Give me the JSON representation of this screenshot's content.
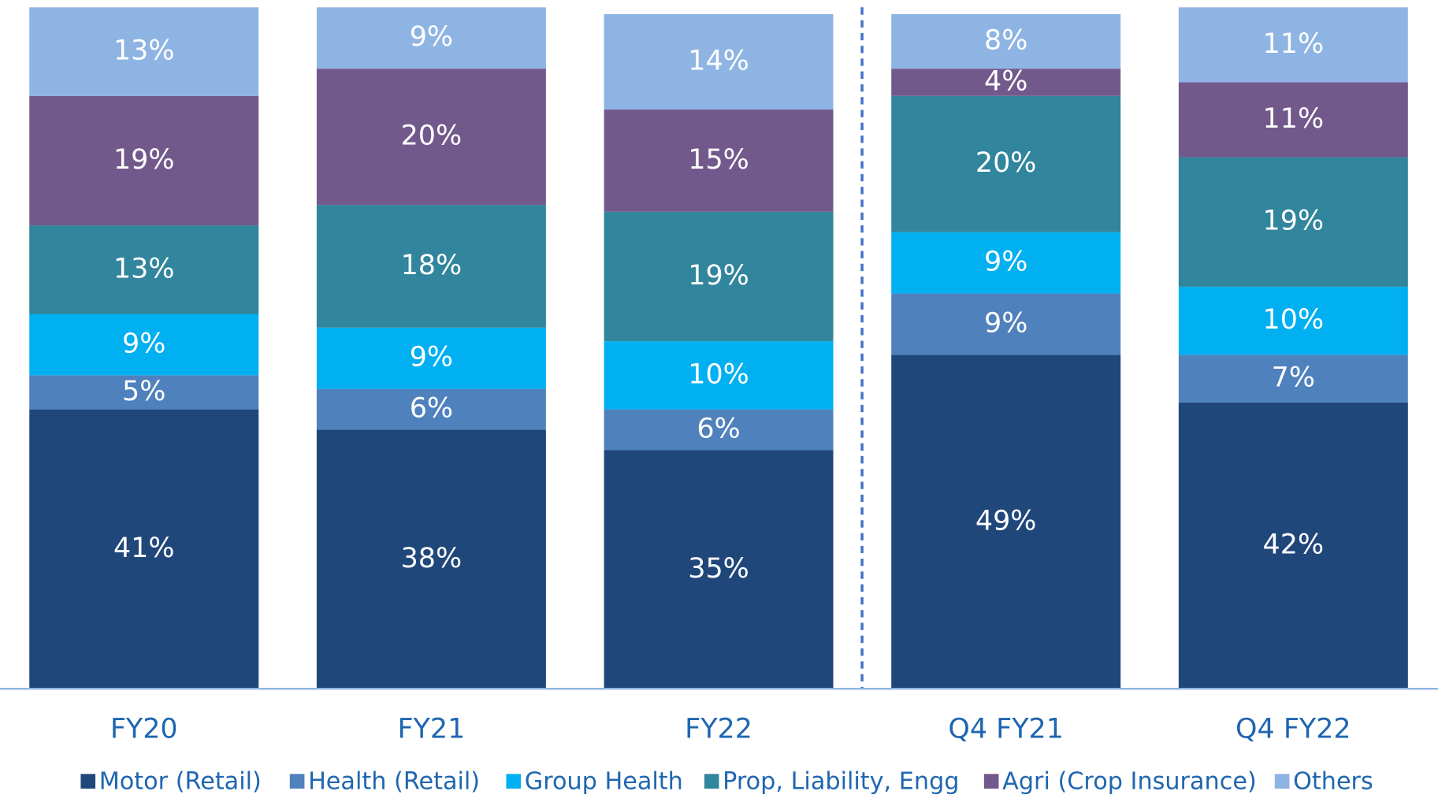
{
  "chart_data": {
    "type": "bar",
    "stacked": true,
    "categories": [
      "FY20",
      "FY21",
      "FY22",
      "Q4 FY21",
      "Q4 FY22"
    ],
    "series": [
      {
        "name": "Motor (Retail)",
        "color": "#20477a",
        "values": [
          41,
          38,
          35,
          49,
          42
        ],
        "value_labels": [
          "41%",
          "38%",
          "35%",
          "49%",
          "42%"
        ]
      },
      {
        "name": "Health (Retail)",
        "color": "#4f81bd",
        "values": [
          5,
          6,
          6,
          9,
          7
        ],
        "value_labels": [
          "5%",
          "6%",
          "6%",
          "9%",
          "7%"
        ]
      },
      {
        "name": "Group Health",
        "color": "#00b0f0",
        "values": [
          9,
          9,
          10,
          9,
          10
        ],
        "value_labels": [
          "9%",
          "9%",
          "10%",
          "9%",
          "10%"
        ]
      },
      {
        "name": "Prop, Liability, Engg",
        "color": "#31859c",
        "values": [
          13,
          18,
          19,
          20,
          19
        ],
        "value_labels": [
          "13%",
          "18%",
          "19%",
          "20%",
          "19%"
        ]
      },
      {
        "name": "Agri (Crop Insurance)",
        "color": "#72598c",
        "values": [
          19,
          20,
          15,
          4,
          11
        ],
        "value_labels": [
          "19%",
          "20%",
          "15%",
          "4%",
          "11%"
        ]
      },
      {
        "name": "Others",
        "color": "#8eb4e3",
        "values": [
          13,
          9,
          14,
          8,
          11
        ],
        "value_labels": [
          "13%",
          "9%",
          "14%",
          "8%",
          "11%"
        ]
      }
    ],
    "ylim": [
      0,
      100
    ]
  }
}
